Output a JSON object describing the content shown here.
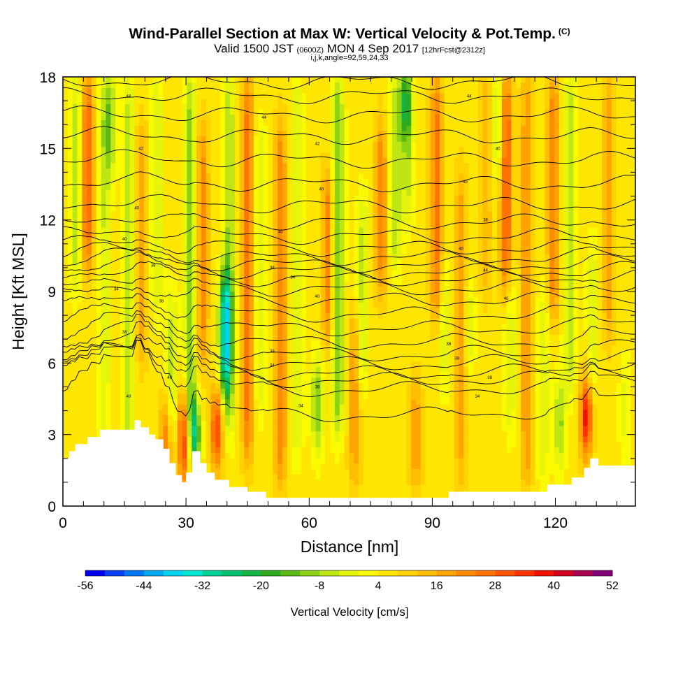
{
  "header": {
    "title_main": "Wind-Parallel Section at Max W: Vertical Velocity & Pot.Temp.",
    "title_mark": "(C)",
    "sub_valid": "Valid 1500 JST",
    "sub_utc": "(0600Z)",
    "sub_date": "MON 4 Sep 2017",
    "sub_fcst": "[12hrFcst@2312z]",
    "sub_indices": "i,j,k,angle=92,59,24,33"
  },
  "chart_data": {
    "type": "heatmap",
    "title": "Wind-Parallel Section at Max W: Vertical Velocity & Pot.Temp.",
    "xlabel": "Distance [nm]",
    "ylabel": "Height [Kft MSL]",
    "xlim": [
      0,
      139.5
    ],
    "ylim": [
      0,
      18
    ],
    "x_ticks": [
      0,
      30,
      60,
      90,
      120
    ],
    "y_ticks": [
      0,
      3,
      6,
      9,
      12,
      15,
      18
    ],
    "colorbar": {
      "label": "Vertical Velocity [cm/s]",
      "tick_labels": [
        "-56",
        "-44",
        "-32",
        "-20",
        "-8",
        "4",
        "16",
        "28",
        "40",
        "52"
      ],
      "bins": [
        {
          "from": -56,
          "to": -52,
          "color": "#0000f0"
        },
        {
          "from": -52,
          "to": -48,
          "color": "#0a40f5"
        },
        {
          "from": -48,
          "to": -44,
          "color": "#0078f5"
        },
        {
          "from": -44,
          "to": -40,
          "color": "#00a8f0"
        },
        {
          "from": -40,
          "to": -36,
          "color": "#00d2f0"
        },
        {
          "from": -36,
          "to": -32,
          "color": "#00e6d2"
        },
        {
          "from": -32,
          "to": -28,
          "color": "#00d296"
        },
        {
          "from": -28,
          "to": -24,
          "color": "#00c26e"
        },
        {
          "from": -24,
          "to": -20,
          "color": "#14b446"
        },
        {
          "from": -20,
          "to": -16,
          "color": "#2daa1e"
        },
        {
          "from": -16,
          "to": -12,
          "color": "#5ab914"
        },
        {
          "from": -12,
          "to": -8,
          "color": "#8cd214"
        },
        {
          "from": -8,
          "to": -4,
          "color": "#bee614"
        },
        {
          "from": -4,
          "to": 0,
          "color": "#e6f50a"
        },
        {
          "from": 0,
          "to": 4,
          "color": "#fafa00"
        },
        {
          "from": 4,
          "to": 8,
          "color": "#ffe600"
        },
        {
          "from": 8,
          "to": 12,
          "color": "#ffd200"
        },
        {
          "from": 12,
          "to": 16,
          "color": "#ffbe00"
        },
        {
          "from": 16,
          "to": 20,
          "color": "#ffa500"
        },
        {
          "from": 20,
          "to": 24,
          "color": "#ff8c00"
        },
        {
          "from": 24,
          "to": 28,
          "color": "#ff7300"
        },
        {
          "from": 28,
          "to": 32,
          "color": "#ff5500"
        },
        {
          "from": 32,
          "to": 36,
          "color": "#ff3200"
        },
        {
          "from": 36,
          "to": 40,
          "color": "#f01400"
        },
        {
          "from": 40,
          "to": 44,
          "color": "#d2001e"
        },
        {
          "from": 44,
          "to": 48,
          "color": "#aa0050"
        },
        {
          "from": 48,
          "to": 52,
          "color": "#820078"
        }
      ]
    },
    "terrain_kft": [
      [
        0,
        2.0
      ],
      [
        1.5,
        2.0
      ],
      [
        1.5,
        2.3
      ],
      [
        3,
        2.3
      ],
      [
        3,
        2.6
      ],
      [
        6,
        2.6
      ],
      [
        6,
        2.9
      ],
      [
        9,
        2.9
      ],
      [
        9,
        3.2
      ],
      [
        17.5,
        3.2
      ],
      [
        17.5,
        3.6
      ],
      [
        19,
        3.6
      ],
      [
        19,
        3.3
      ],
      [
        21,
        3.3
      ],
      [
        21,
        3.0
      ],
      [
        22.5,
        3.0
      ],
      [
        22.5,
        2.8
      ],
      [
        24.5,
        2.8
      ],
      [
        24.5,
        2.4
      ],
      [
        26,
        2.4
      ],
      [
        26,
        1.8
      ],
      [
        27.5,
        1.8
      ],
      [
        27.5,
        1.3
      ],
      [
        29,
        1.3
      ],
      [
        29,
        1.0
      ],
      [
        30,
        1.0
      ],
      [
        30,
        1.4
      ],
      [
        31.5,
        1.4
      ],
      [
        31.5,
        2.3
      ],
      [
        33.5,
        2.3
      ],
      [
        33.5,
        1.8
      ],
      [
        35,
        1.8
      ],
      [
        35,
        1.4
      ],
      [
        37,
        1.4
      ],
      [
        37,
        1.1
      ],
      [
        40.5,
        1.1
      ],
      [
        40.5,
        0.8
      ],
      [
        45,
        0.8
      ],
      [
        45,
        0.6
      ],
      [
        49.5,
        0.6
      ],
      [
        49.5,
        0.35
      ],
      [
        94,
        0.35
      ],
      [
        94,
        0.6
      ],
      [
        118,
        0.6
      ],
      [
        118,
        0.9
      ],
      [
        124,
        0.9
      ],
      [
        124,
        1.2
      ],
      [
        127,
        1.2
      ],
      [
        127,
        1.6
      ],
      [
        128.5,
        1.6
      ],
      [
        128.5,
        2.0
      ],
      [
        130.5,
        2.0
      ],
      [
        130.5,
        1.7
      ],
      [
        139.5,
        1.7
      ]
    ],
    "w_field": {
      "background_cm_s": 6,
      "plumes": [
        {
          "x": 3,
          "w": -12,
          "zmin": 9,
          "zmax": 18
        },
        {
          "x": 6,
          "w": 22,
          "zmin": 10,
          "zmax": 18
        },
        {
          "x": 10,
          "w": -10,
          "zmin": 3,
          "zmax": 18
        },
        {
          "x": 11.5,
          "w": -16,
          "zmin": 14,
          "zmax": 18
        },
        {
          "x": 16,
          "w": -12,
          "zmin": 2,
          "zmax": 18
        },
        {
          "x": 19,
          "w": 12,
          "zmin": 6,
          "zmax": 16
        },
        {
          "x": 23,
          "w": -10,
          "zmin": 8,
          "zmax": 18
        },
        {
          "x": 25,
          "w": 24,
          "zmin": 1.5,
          "zmax": 4
        },
        {
          "x": 26.5,
          "w": -12,
          "zmin": 3,
          "zmax": 9
        },
        {
          "x": 29.5,
          "w": 32,
          "zmin": 1.2,
          "zmax": 4.5
        },
        {
          "x": 31,
          "w": -16,
          "zmin": 3,
          "zmax": 18
        },
        {
          "x": 32,
          "w": -44,
          "zmin": 2,
          "zmax": 4
        },
        {
          "x": 34,
          "w": 16,
          "zmin": 6,
          "zmax": 16
        },
        {
          "x": 37.5,
          "w": 34,
          "zmin": 2,
          "zmax": 4.5
        },
        {
          "x": 39.5,
          "w": -40,
          "zmin": 5,
          "zmax": 9.5
        },
        {
          "x": 40.5,
          "w": -14,
          "zmin": 3,
          "zmax": 18
        },
        {
          "x": 45,
          "w": 20,
          "zmin": 2,
          "zmax": 18
        },
        {
          "x": 48,
          "w": -10,
          "zmin": 4,
          "zmax": 16
        },
        {
          "x": 53,
          "w": 18,
          "zmin": 1,
          "zmax": 16
        },
        {
          "x": 57,
          "w": -10,
          "zmin": 2,
          "zmax": 18
        },
        {
          "x": 62,
          "w": -20,
          "zmin": 2.5,
          "zmax": 6
        },
        {
          "x": 64.5,
          "w": 18,
          "zmin": 7,
          "zmax": 14
        },
        {
          "x": 67,
          "w": -18,
          "zmin": 3,
          "zmax": 18
        },
        {
          "x": 71,
          "w": 14,
          "zmin": 1,
          "zmax": 8
        },
        {
          "x": 73,
          "w": -12,
          "zmin": 5,
          "zmax": 13
        },
        {
          "x": 77.5,
          "w": 18,
          "zmin": 9,
          "zmax": 16
        },
        {
          "x": 81,
          "w": -14,
          "zmin": 10,
          "zmax": 18
        },
        {
          "x": 83.5,
          "w": -34,
          "zmin": 16,
          "zmax": 18
        },
        {
          "x": 84,
          "w": -12,
          "zmin": 12,
          "zmax": 17
        },
        {
          "x": 86,
          "w": 16,
          "zmin": 1,
          "zmax": 5
        },
        {
          "x": 91,
          "w": 20,
          "zmin": 8,
          "zmax": 18
        },
        {
          "x": 93,
          "w": -10,
          "zmin": 5,
          "zmax": 10
        },
        {
          "x": 97,
          "w": 12,
          "zmin": 1,
          "zmax": 14
        },
        {
          "x": 99,
          "w": -12,
          "zmin": 6,
          "zmax": 9
        },
        {
          "x": 103,
          "w": 10,
          "zmin": 9,
          "zmax": 18
        },
        {
          "x": 106,
          "w": -14,
          "zmin": 14,
          "zmax": 18
        },
        {
          "x": 108,
          "w": 24,
          "zmin": 9,
          "zmax": 18
        },
        {
          "x": 109,
          "w": -10,
          "zmin": 3,
          "zmax": 10
        },
        {
          "x": 113,
          "w": 14,
          "zmin": 1,
          "zmax": 18
        },
        {
          "x": 117,
          "w": -10,
          "zmin": 1,
          "zmax": 9
        },
        {
          "x": 119.5,
          "w": 18,
          "zmin": 8,
          "zmax": 18
        },
        {
          "x": 121,
          "w": -18,
          "zmin": 2,
          "zmax": 5
        },
        {
          "x": 123.5,
          "w": -14,
          "zmin": 5,
          "zmax": 18
        },
        {
          "x": 127.5,
          "w": 40,
          "zmin": 2.5,
          "zmax": 5
        },
        {
          "x": 129,
          "w": -10,
          "zmin": 5,
          "zmax": 11
        },
        {
          "x": 133,
          "w": 12,
          "zmin": 7,
          "zmax": 18
        },
        {
          "x": 137,
          "w": -8,
          "zmin": 2,
          "zmax": 6
        }
      ]
    },
    "theta_contours": {
      "levels_kft": [
        3.7,
        4.8,
        5.2,
        5.5,
        5.9,
        6.3,
        6.8,
        7.4,
        8.0,
        8.6,
        9.1,
        9.5,
        9.8,
        10.1,
        10.4,
        10.8,
        11.3,
        11.9,
        12.6,
        13.5,
        14.5,
        15.5,
        16.4,
        17.2,
        17.8
      ],
      "labels": [
        {
          "x": 16,
          "z": 4.6,
          "text": "40"
        },
        {
          "x": 26,
          "z": 5.4,
          "text": "40"
        },
        {
          "x": 58,
          "z": 4.2,
          "text": "34"
        },
        {
          "x": 62,
          "z": 5.0,
          "text": "38"
        },
        {
          "x": 15,
          "z": 7.3,
          "text": "38"
        },
        {
          "x": 24,
          "z": 8.6,
          "text": "38"
        },
        {
          "x": 13,
          "z": 9.1,
          "text": "34"
        },
        {
          "x": 51,
          "z": 5.9,
          "text": "34"
        },
        {
          "x": 51,
          "z": 6.5,
          "text": "38"
        },
        {
          "x": 94,
          "z": 6.8,
          "text": "38"
        },
        {
          "x": 96,
          "z": 6.2,
          "text": "38"
        },
        {
          "x": 104,
          "z": 5.4,
          "text": "38"
        },
        {
          "x": 101,
          "z": 4.6,
          "text": "34"
        },
        {
          "x": 108,
          "z": 8.7,
          "text": "40"
        },
        {
          "x": 103,
          "z": 9.9,
          "text": "44"
        },
        {
          "x": 22,
          "z": 10.1,
          "text": "38"
        },
        {
          "x": 15,
          "z": 11.2,
          "text": "40"
        },
        {
          "x": 51,
          "z": 10.0,
          "text": "38"
        },
        {
          "x": 56,
          "z": 9.6,
          "text": "34"
        },
        {
          "x": 62,
          "z": 8.8,
          "text": "40"
        },
        {
          "x": 97,
          "z": 10.8,
          "text": "40"
        },
        {
          "x": 103,
          "z": 12.0,
          "text": "38"
        },
        {
          "x": 53,
          "z": 11.5,
          "text": "40"
        },
        {
          "x": 18,
          "z": 12.5,
          "text": "40"
        },
        {
          "x": 63,
          "z": 13.3,
          "text": "40"
        },
        {
          "x": 98,
          "z": 13.6,
          "text": "40"
        },
        {
          "x": 19,
          "z": 15.0,
          "text": "42"
        },
        {
          "x": 62,
          "z": 15.2,
          "text": "42"
        },
        {
          "x": 106,
          "z": 15.0,
          "text": "40"
        },
        {
          "x": 49,
          "z": 16.3,
          "text": "44"
        },
        {
          "x": 16,
          "z": 17.2,
          "text": "44"
        },
        {
          "x": 99,
          "z": 17.2,
          "text": "44"
        }
      ]
    }
  }
}
